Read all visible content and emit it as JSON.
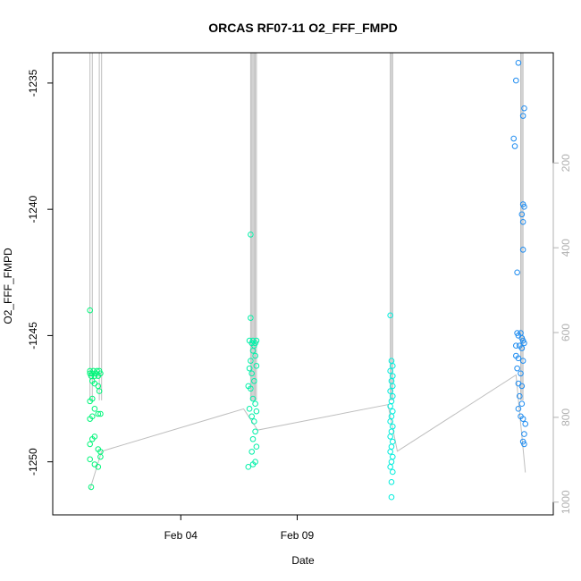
{
  "chart_data": {
    "type": "scatter",
    "title": "ORCAS RF07-11 O2_FFF_FMPD",
    "xlabel": "Date",
    "ylabel": "O2_FFF_FMPD",
    "x_ticks": [
      "Feb 04",
      "Feb 09"
    ],
    "y_ticks": [
      -1235,
      -1240,
      -1245,
      -1250
    ],
    "y_right_ticks": [
      200,
      400,
      600,
      800,
      1000
    ],
    "y_right_reversed": true,
    "ylim": [
      -1252.1,
      -1233.8
    ],
    "y_right_lim": [
      -60,
      1030
    ],
    "colors": {
      "cluster1": "#00f57a",
      "cluster2": "#00f0a8",
      "cluster3": "#00eddc",
      "cluster4": "#1e8cf0",
      "right_series": "#bebebe"
    },
    "series": [
      {
        "color_key": "cluster1",
        "points": [
          {
            "d": 31.1,
            "v": -1244.0
          },
          {
            "d": 31.1,
            "v": -1246.4
          },
          {
            "d": 31.1,
            "v": -1246.5
          },
          {
            "d": 31.15,
            "v": -1246.6
          },
          {
            "d": 31.2,
            "v": -1246.5
          },
          {
            "d": 31.25,
            "v": -1246.4
          },
          {
            "d": 31.3,
            "v": -1246.6
          },
          {
            "d": 31.35,
            "v": -1246.5
          },
          {
            "d": 31.4,
            "v": -1246.4
          },
          {
            "d": 31.45,
            "v": -1246.6
          },
          {
            "d": 31.5,
            "v": -1246.4
          },
          {
            "d": 31.55,
            "v": -1246.5
          },
          {
            "d": 31.2,
            "v": -1246.8
          },
          {
            "d": 31.3,
            "v": -1246.9
          },
          {
            "d": 31.45,
            "v": -1247.0
          },
          {
            "d": 31.5,
            "v": -1247.2
          },
          {
            "d": 31.2,
            "v": -1247.5
          },
          {
            "d": 31.1,
            "v": -1247.6
          },
          {
            "d": 31.3,
            "v": -1247.9
          },
          {
            "d": 31.45,
            "v": -1248.1
          },
          {
            "d": 31.55,
            "v": -1248.1
          },
          {
            "d": 31.2,
            "v": -1248.2
          },
          {
            "d": 31.1,
            "v": -1248.3
          },
          {
            "d": 31.2,
            "v": -1249.1
          },
          {
            "d": 31.1,
            "v": -1249.3
          },
          {
            "d": 31.3,
            "v": -1249.0
          },
          {
            "d": 31.45,
            "v": -1249.5
          },
          {
            "d": 31.55,
            "v": -1249.6
          },
          {
            "d": 31.1,
            "v": -1249.9
          },
          {
            "d": 31.3,
            "v": -1250.1
          },
          {
            "d": 31.45,
            "v": -1250.2
          },
          {
            "d": 31.55,
            "v": -1249.8
          },
          {
            "d": 31.15,
            "v": -1251.0
          }
        ]
      },
      {
        "color_key": "cluster2",
        "points": [
          {
            "d": 38.0,
            "v": -1241.0
          },
          {
            "d": 38.0,
            "v": -1244.3
          },
          {
            "d": 37.95,
            "v": -1245.2
          },
          {
            "d": 38.05,
            "v": -1245.3
          },
          {
            "d": 38.1,
            "v": -1245.2
          },
          {
            "d": 38.15,
            "v": -1245.4
          },
          {
            "d": 38.2,
            "v": -1245.3
          },
          {
            "d": 38.25,
            "v": -1245.2
          },
          {
            "d": 38.1,
            "v": -1245.6
          },
          {
            "d": 38.2,
            "v": -1245.8
          },
          {
            "d": 38.0,
            "v": -1246.0
          },
          {
            "d": 38.25,
            "v": -1246.2
          },
          {
            "d": 37.95,
            "v": -1246.3
          },
          {
            "d": 38.05,
            "v": -1246.5
          },
          {
            "d": 38.15,
            "v": -1246.8
          },
          {
            "d": 37.9,
            "v": -1247.0
          },
          {
            "d": 38.0,
            "v": -1247.1
          },
          {
            "d": 38.1,
            "v": -1247.5
          },
          {
            "d": 38.2,
            "v": -1247.7
          },
          {
            "d": 37.95,
            "v": -1247.9
          },
          {
            "d": 38.25,
            "v": -1248.0
          },
          {
            "d": 38.05,
            "v": -1248.2
          },
          {
            "d": 38.15,
            "v": -1248.4
          },
          {
            "d": 38.2,
            "v": -1248.8
          },
          {
            "d": 38.1,
            "v": -1249.1
          },
          {
            "d": 38.25,
            "v": -1249.4
          },
          {
            "d": 38.05,
            "v": -1249.6
          },
          {
            "d": 38.2,
            "v": -1250.0
          },
          {
            "d": 37.9,
            "v": -1250.2
          },
          {
            "d": 38.1,
            "v": -1250.1
          }
        ]
      },
      {
        "color_key": "cluster3",
        "points": [
          {
            "d": 44.0,
            "v": -1244.2
          },
          {
            "d": 44.05,
            "v": -1246.0
          },
          {
            "d": 44.1,
            "v": -1246.2
          },
          {
            "d": 44.0,
            "v": -1246.4
          },
          {
            "d": 44.1,
            "v": -1246.6
          },
          {
            "d": 44.05,
            "v": -1246.8
          },
          {
            "d": 44.1,
            "v": -1247.0
          },
          {
            "d": 44.0,
            "v": -1247.2
          },
          {
            "d": 44.1,
            "v": -1247.4
          },
          {
            "d": 44.05,
            "v": -1247.6
          },
          {
            "d": 44.0,
            "v": -1247.8
          },
          {
            "d": 44.1,
            "v": -1248.0
          },
          {
            "d": 44.05,
            "v": -1248.2
          },
          {
            "d": 44.0,
            "v": -1248.4
          },
          {
            "d": 44.1,
            "v": -1248.6
          },
          {
            "d": 44.05,
            "v": -1248.8
          },
          {
            "d": 44.0,
            "v": -1249.0
          },
          {
            "d": 44.1,
            "v": -1249.2
          },
          {
            "d": 44.05,
            "v": -1249.4
          },
          {
            "d": 44.0,
            "v": -1249.6
          },
          {
            "d": 44.1,
            "v": -1249.8
          },
          {
            "d": 44.05,
            "v": -1250.0
          },
          {
            "d": 44.0,
            "v": -1250.2
          },
          {
            "d": 44.1,
            "v": -1250.4
          },
          {
            "d": 44.05,
            "v": -1250.8
          },
          {
            "d": 44.05,
            "v": -1251.4
          }
        ]
      },
      {
        "color_key": "cluster4",
        "points": [
          {
            "d": 49.5,
            "v": -1234.2
          },
          {
            "d": 49.4,
            "v": -1234.9
          },
          {
            "d": 49.75,
            "v": -1236.0
          },
          {
            "d": 49.7,
            "v": -1236.3
          },
          {
            "d": 49.3,
            "v": -1237.2
          },
          {
            "d": 49.35,
            "v": -1237.5
          },
          {
            "d": 49.7,
            "v": -1239.8
          },
          {
            "d": 49.75,
            "v": -1239.9
          },
          {
            "d": 49.65,
            "v": -1240.2
          },
          {
            "d": 49.7,
            "v": -1240.5
          },
          {
            "d": 49.7,
            "v": -1241.6
          },
          {
            "d": 49.45,
            "v": -1242.5
          },
          {
            "d": 49.45,
            "v": -1244.9
          },
          {
            "d": 49.5,
            "v": -1245.0
          },
          {
            "d": 49.6,
            "v": -1244.9
          },
          {
            "d": 49.65,
            "v": -1245.1
          },
          {
            "d": 49.7,
            "v": -1245.2
          },
          {
            "d": 49.4,
            "v": -1245.4
          },
          {
            "d": 49.55,
            "v": -1245.4
          },
          {
            "d": 49.65,
            "v": -1245.5
          },
          {
            "d": 49.75,
            "v": -1245.3
          },
          {
            "d": 49.4,
            "v": -1245.8
          },
          {
            "d": 49.5,
            "v": -1245.9
          },
          {
            "d": 49.7,
            "v": -1246.0
          },
          {
            "d": 49.45,
            "v": -1246.3
          },
          {
            "d": 49.6,
            "v": -1246.5
          },
          {
            "d": 49.5,
            "v": -1246.9
          },
          {
            "d": 49.65,
            "v": -1247.0
          },
          {
            "d": 49.55,
            "v": -1247.4
          },
          {
            "d": 49.65,
            "v": -1247.7
          },
          {
            "d": 49.5,
            "v": -1247.9
          },
          {
            "d": 49.6,
            "v": -1248.2
          },
          {
            "d": 49.7,
            "v": -1248.3
          },
          {
            "d": 49.8,
            "v": -1248.5
          },
          {
            "d": 49.75,
            "v": -1248.9
          },
          {
            "d": 49.7,
            "v": -1249.2
          },
          {
            "d": 49.75,
            "v": -1249.3
          }
        ]
      }
    ],
    "right_series": {
      "lines": [
        {
          "d": [
            31.1,
            31.6,
            37.7,
            38.3,
            43.9,
            44.3,
            49.4,
            49.8
          ],
          "v": [
            970,
            880,
            780,
            830,
            770,
            880,
            700,
            930
          ]
        }
      ]
    }
  }
}
